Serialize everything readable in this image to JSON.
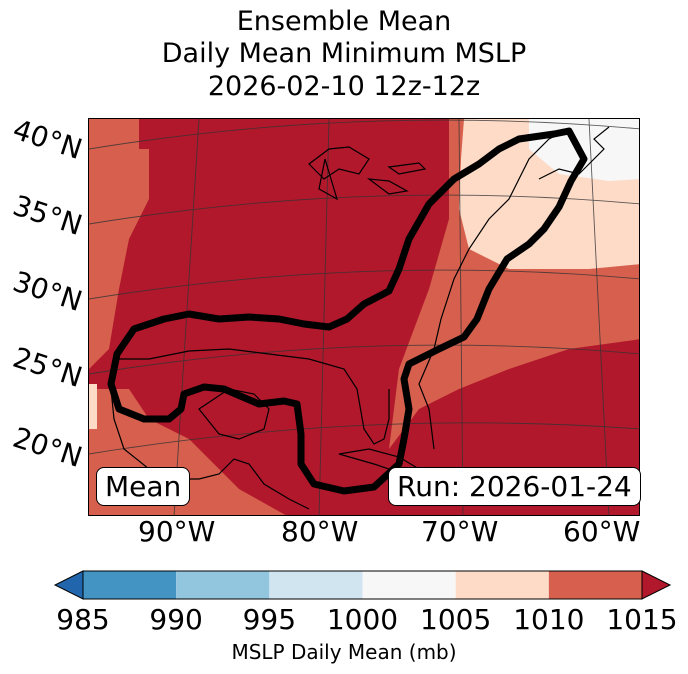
{
  "title": {
    "line1": "Ensemble Mean",
    "line2": "Daily Mean Minimum MSLP",
    "line3": "2026-02-10 12z-12z"
  },
  "map": {
    "lat_labels": [
      "40°N",
      "35°N",
      "30°N",
      "25°N",
      "20°N"
    ],
    "lon_labels": [
      "90°W",
      "80°W",
      "70°W",
      "60°W"
    ],
    "mean_box": "Mean",
    "run_box": "Run: 2026-01-24",
    "colors": {
      "c1005": "#fddbc7",
      "c1000": "#f7f7f7",
      "c1010": "#d6604d",
      "c1015": "#b2182b",
      "contour": "#000000"
    }
  },
  "colorbar": {
    "ticks": [
      "985",
      "990",
      "995",
      "1000",
      "1005",
      "1010",
      "1015"
    ],
    "colors": [
      "#2166ac",
      "#4393c3",
      "#92c5de",
      "#d1e5f0",
      "#f7f7f7",
      "#fddbc7",
      "#d6604d",
      "#b2182b"
    ],
    "label": "MSLP Daily Mean (mb)"
  }
}
